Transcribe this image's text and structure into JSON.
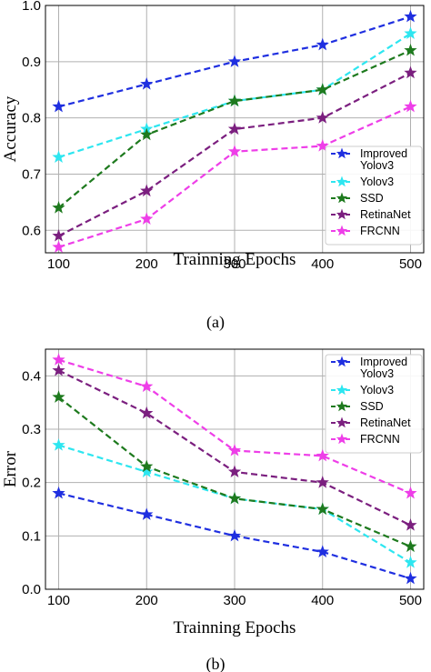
{
  "chart_data": [
    {
      "type": "line",
      "caption": "(a)",
      "x": [
        100,
        200,
        300,
        400,
        500
      ],
      "xlabel": "Trainning Epochs",
      "ylabel": "Accuracy",
      "xticks": [
        "100",
        "200",
        "300",
        "400",
        "500"
      ],
      "yticks": [
        "0.6",
        "0.7",
        "0.8",
        "0.9",
        "1.0"
      ],
      "ylim": [
        0.56,
        1.0
      ],
      "grid": true,
      "legend_position": "bottom-right",
      "series": [
        {
          "name": "Improved\nYolov3",
          "color": "#1f2fe0",
          "values": [
            0.82,
            0.86,
            0.9,
            0.93,
            0.98
          ]
        },
        {
          "name": "Yolov3",
          "color": "#2de6f0",
          "values": [
            0.73,
            0.78,
            0.83,
            0.85,
            0.95
          ]
        },
        {
          "name": "SSD",
          "color": "#1e7a1e",
          "values": [
            0.64,
            0.77,
            0.83,
            0.85,
            0.92
          ]
        },
        {
          "name": "RetinaNet",
          "color": "#7b1f7f",
          "values": [
            0.59,
            0.67,
            0.78,
            0.8,
            0.88
          ]
        },
        {
          "name": "FRCNN",
          "color": "#ee3ee8",
          "values": [
            0.57,
            0.62,
            0.74,
            0.75,
            0.82
          ]
        }
      ]
    },
    {
      "type": "line",
      "caption": "(b)",
      "x": [
        100,
        200,
        300,
        400,
        500
      ],
      "xlabel": "Trainning Epochs",
      "ylabel": "Error",
      "xticks": [
        "100",
        "200",
        "300",
        "400",
        "500"
      ],
      "yticks": [
        "0.0",
        "0.1",
        "0.2",
        "0.3",
        "0.4"
      ],
      "ylim": [
        0.0,
        0.45
      ],
      "grid": true,
      "legend_position": "top-right",
      "series": [
        {
          "name": "Improved\nYolov3",
          "color": "#1f2fe0",
          "values": [
            0.18,
            0.14,
            0.1,
            0.07,
            0.02
          ]
        },
        {
          "name": "Yolov3",
          "color": "#2de6f0",
          "values": [
            0.27,
            0.22,
            0.17,
            0.15,
            0.05
          ]
        },
        {
          "name": "SSD",
          "color": "#1e7a1e",
          "values": [
            0.36,
            0.23,
            0.17,
            0.15,
            0.08
          ]
        },
        {
          "name": "RetinaNet",
          "color": "#7b1f7f",
          "values": [
            0.41,
            0.33,
            0.22,
            0.2,
            0.12
          ]
        },
        {
          "name": "FRCNN",
          "color": "#ee3ee8",
          "values": [
            0.43,
            0.38,
            0.26,
            0.25,
            0.18
          ]
        }
      ]
    }
  ]
}
